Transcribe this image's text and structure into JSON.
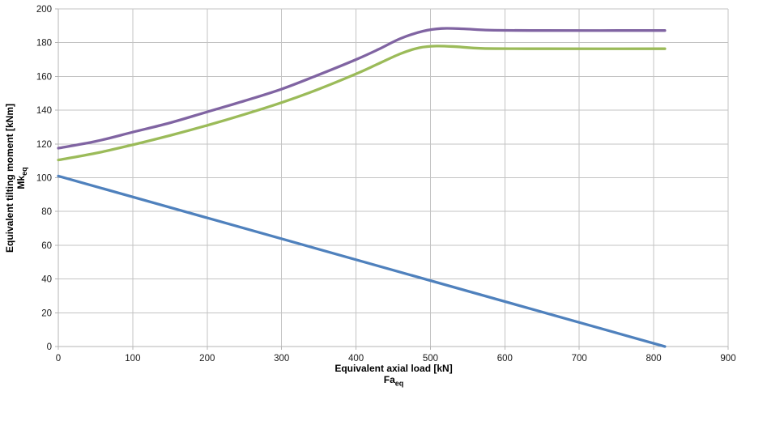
{
  "chart_data": {
    "type": "line",
    "title": "",
    "xlabel": {
      "line1": "Equivalent axial load [kN]",
      "line2_main": "Fa",
      "line2_sub": "eq"
    },
    "ylabel": {
      "line1": "Equivalent tilting moment [kNm]",
      "line2_main": "Mk",
      "line2_sub": "eq"
    },
    "xlim": [
      0,
      900
    ],
    "ylim": [
      0,
      200
    ],
    "x_ticks": [
      0,
      100,
      200,
      300,
      400,
      500,
      600,
      700,
      800,
      900
    ],
    "y_ticks": [
      0,
      20,
      40,
      60,
      80,
      100,
      120,
      140,
      160,
      180,
      200
    ],
    "grid": true,
    "legend": "none",
    "colors": {
      "gridline": "#c3c3c3",
      "axis": "#b5b5b5",
      "tick": "#b5b5b5",
      "purple": "#8064A2",
      "green": "#9BBB59",
      "blue": "#4F81BD"
    },
    "series": [
      {
        "name": "purple-curve",
        "color": "#8064A2",
        "smooth": true,
        "x": [
          0,
          50,
          100,
          150,
          200,
          250,
          300,
          350,
          400,
          430,
          460,
          490,
          515,
          545,
          580,
          650,
          815
        ],
        "y": [
          117.5,
          121.5,
          127,
          132.5,
          139,
          145.5,
          152.5,
          161,
          170,
          176,
          182.5,
          186.8,
          188.4,
          188.2,
          187.4,
          187.2,
          187.2
        ]
      },
      {
        "name": "green-curve",
        "color": "#9BBB59",
        "smooth": true,
        "x": [
          0,
          50,
          100,
          150,
          200,
          250,
          300,
          350,
          400,
          430,
          460,
          485,
          508,
          535,
          570,
          650,
          815
        ],
        "y": [
          110.5,
          114.5,
          119.5,
          125,
          131,
          137.5,
          144.5,
          152.5,
          161.5,
          167.5,
          173.5,
          177,
          178,
          177.6,
          176.6,
          176.4,
          176.4
        ]
      },
      {
        "name": "blue-line",
        "color": "#4F81BD",
        "smooth": false,
        "x": [
          0,
          815
        ],
        "y": [
          101,
          0
        ]
      }
    ]
  }
}
